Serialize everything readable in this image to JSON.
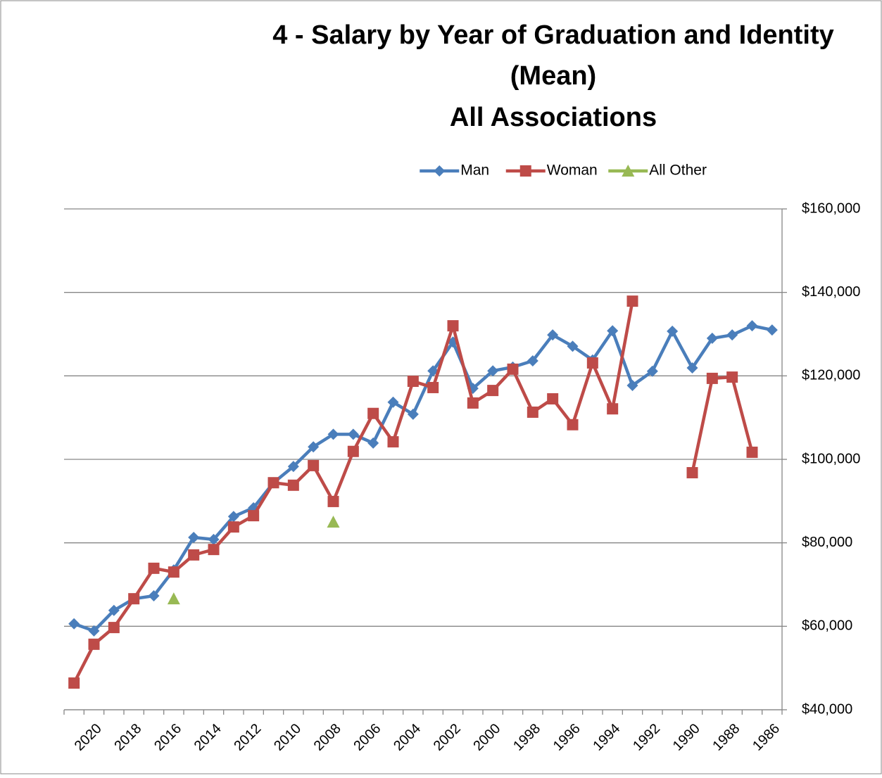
{
  "chart_data": {
    "type": "line",
    "title": [
      "4 - Salary by Year of Graduation and Identity",
      "(Mean)",
      "All Associations"
    ],
    "categories": [
      null,
      "2020",
      null,
      "2018",
      null,
      "2016",
      null,
      "2014",
      null,
      "2012",
      null,
      "2010",
      null,
      "2008",
      null,
      "2006",
      null,
      "2004",
      null,
      "2002",
      null,
      "2000",
      null,
      "1998",
      null,
      "1996",
      null,
      "1994",
      null,
      "1992",
      null,
      "1990",
      null,
      "1988",
      null,
      "1986"
    ],
    "series": [
      {
        "name": "Man",
        "color": "#4a7ebb",
        "marker": "diamond",
        "values": [
          60600,
          58900,
          63800,
          66600,
          67300,
          73500,
          81300,
          80800,
          86300,
          88400,
          94400,
          98300,
          103000,
          106000,
          106000,
          103900,
          113700,
          110800,
          121200,
          128100,
          117000,
          121200,
          122100,
          123600,
          129800,
          127100,
          123800,
          130800,
          117700,
          121100,
          130700,
          121900,
          129000,
          129800,
          132000,
          131000
        ]
      },
      {
        "name": "Woman",
        "color": "#be4b48",
        "marker": "square",
        "values": [
          46400,
          55700,
          59700,
          66600,
          73900,
          73000,
          77100,
          78400,
          83800,
          86500,
          94400,
          93800,
          98500,
          89900,
          101900,
          111000,
          104200,
          118700,
          117200,
          132000,
          113500,
          116500,
          121600,
          111300,
          114500,
          108300,
          123100,
          112100,
          137900,
          null,
          null,
          96800,
          119400,
          119700,
          101700,
          null
        ]
      },
      {
        "name": "All Other",
        "color": "#98b954",
        "marker": "triangle",
        "values": [
          null,
          null,
          null,
          null,
          null,
          66600,
          null,
          null,
          null,
          null,
          null,
          null,
          null,
          85000,
          null,
          null,
          null,
          null,
          null,
          null,
          null,
          null,
          null,
          null,
          null,
          null,
          null,
          null,
          null,
          null,
          null,
          null,
          null,
          null,
          null,
          null
        ]
      }
    ],
    "ylim": [
      40000,
      160000
    ],
    "yticks": [
      {
        "value": 40000,
        "label": "$40,000"
      },
      {
        "value": 60000,
        "label": "$60,000"
      },
      {
        "value": 80000,
        "label": "$80,000"
      },
      {
        "value": 100000,
        "label": "$100,000"
      },
      {
        "value": 120000,
        "label": "$120,000"
      },
      {
        "value": 140000,
        "label": "$140,000"
      },
      {
        "value": 160000,
        "label": "$160,000"
      }
    ],
    "grid": true,
    "legend": "top",
    "y_axis_side": "right"
  }
}
